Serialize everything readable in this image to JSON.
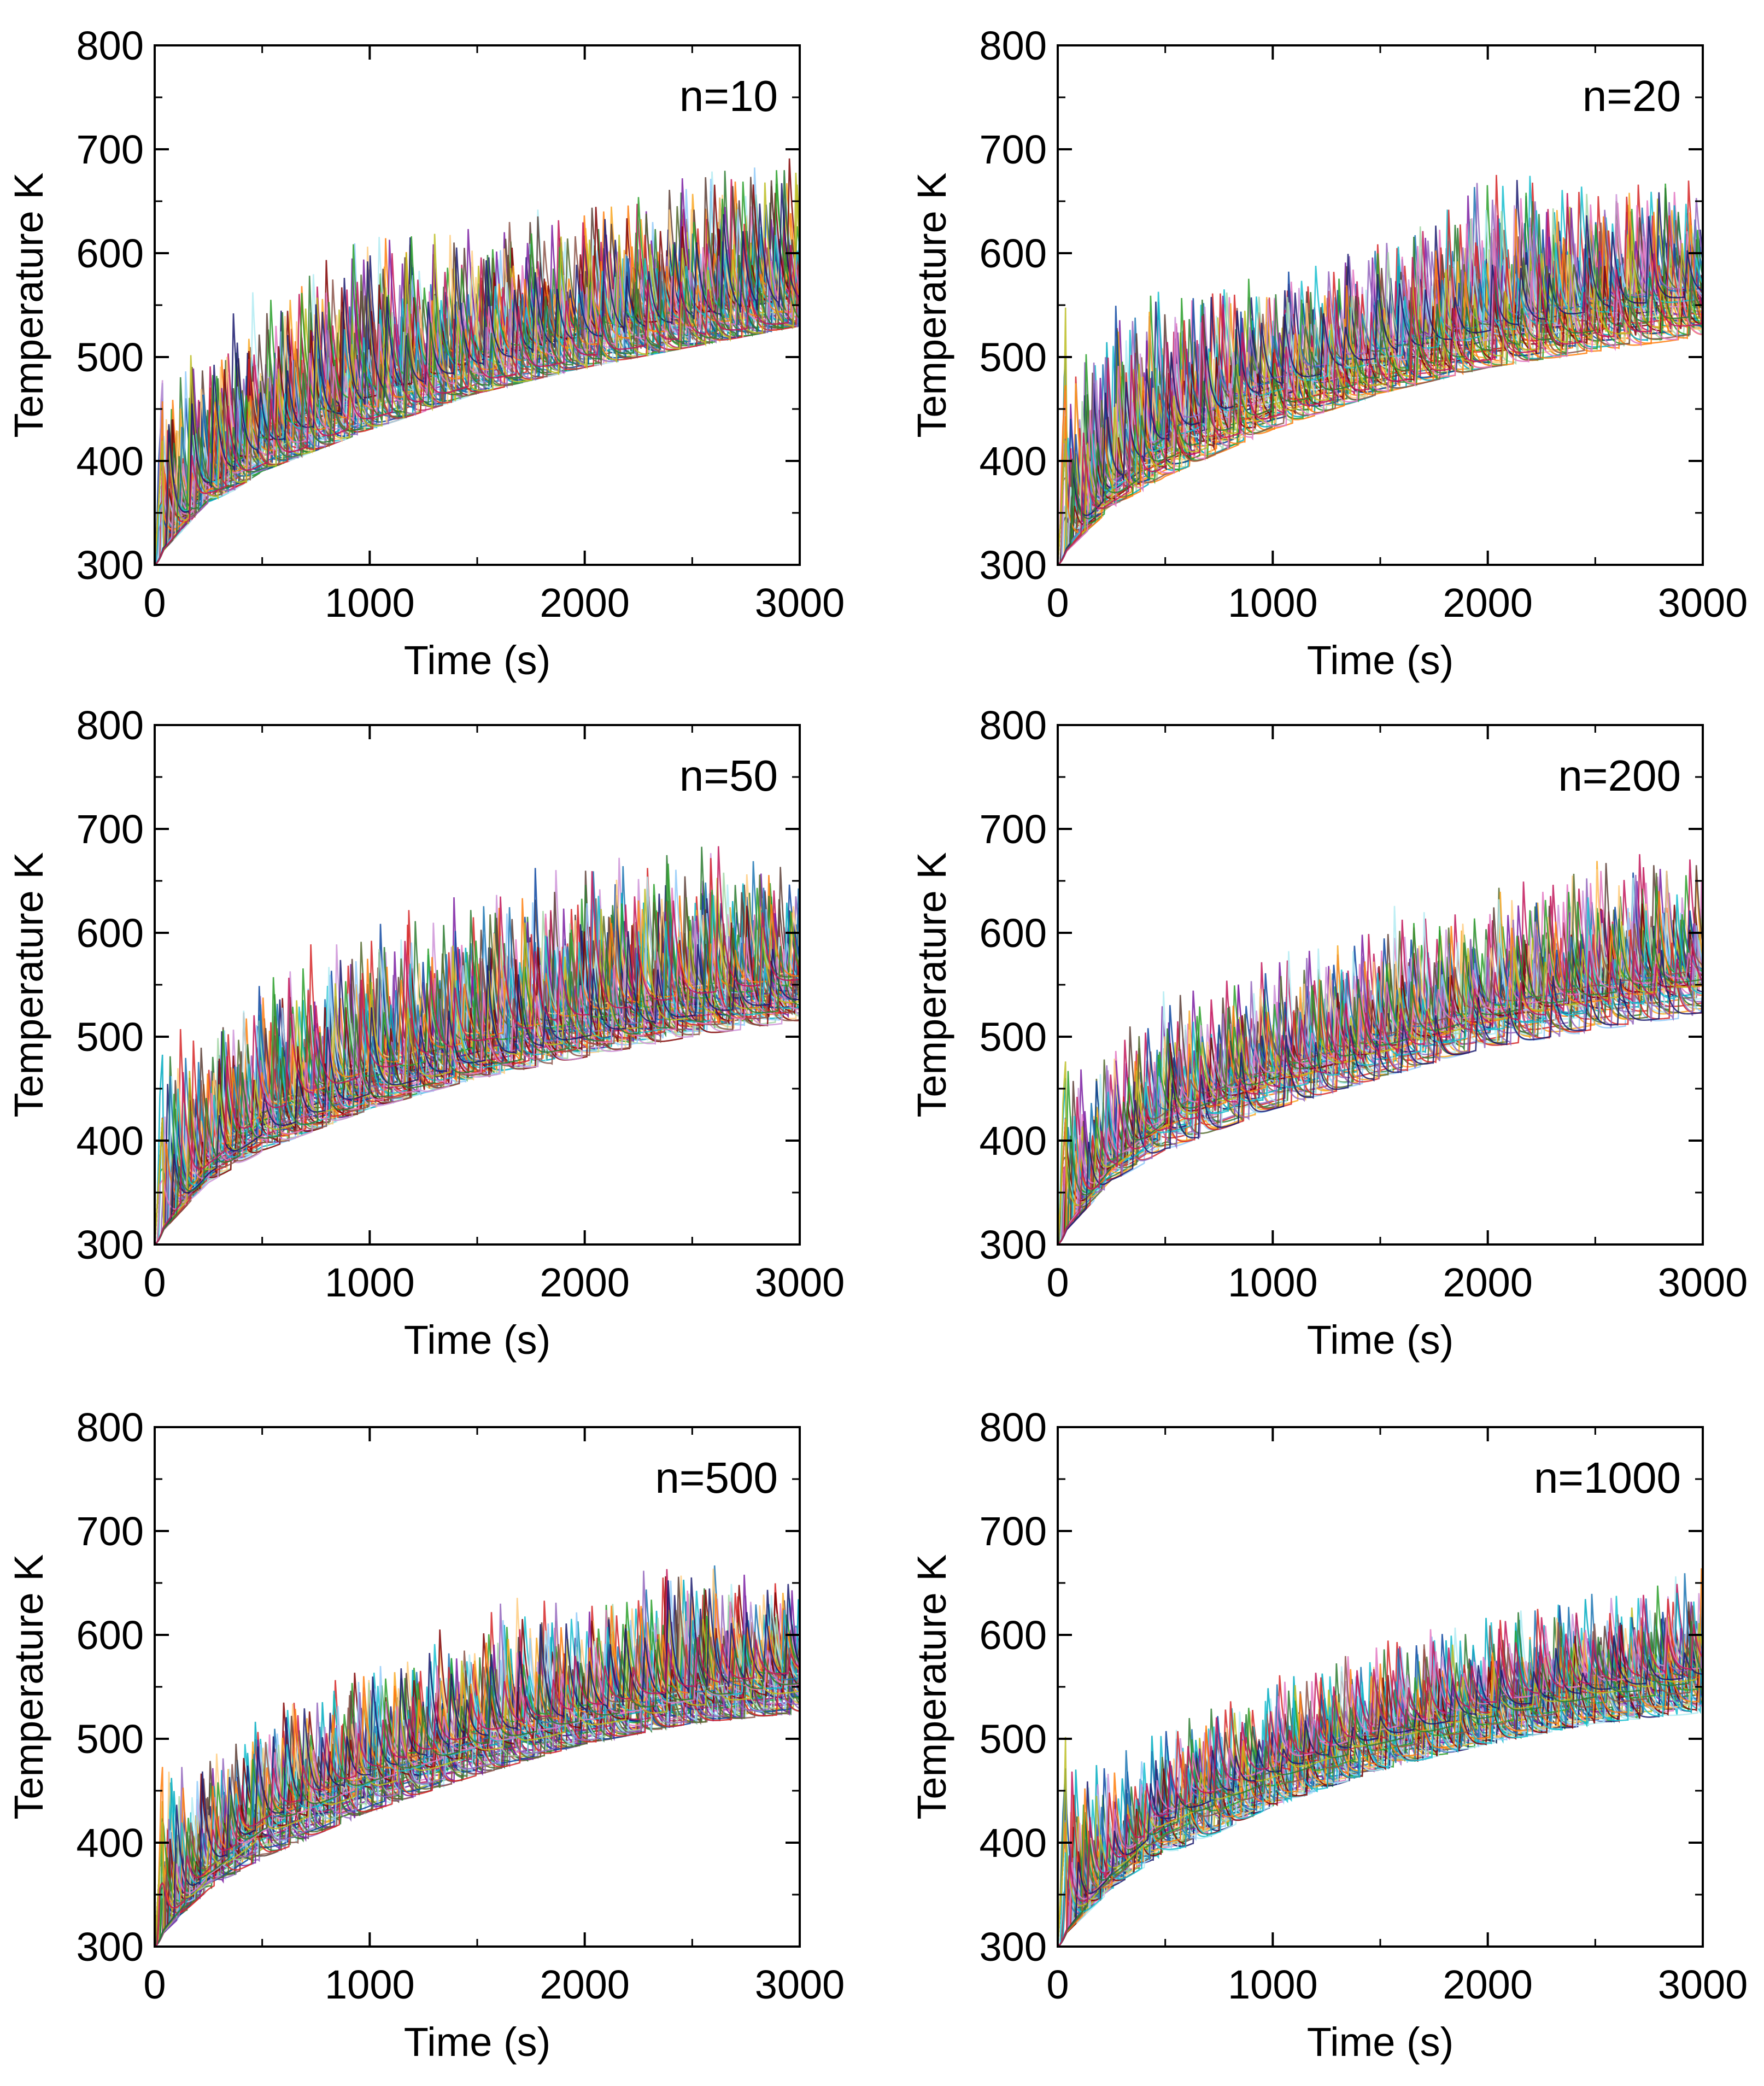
{
  "figure": {
    "description_free": true
  },
  "chart_data": [
    {
      "type": "line",
      "title": "n=10",
      "xlabel": "Time (s)",
      "ylabel": "Temperature K",
      "xlim": [
        0,
        3000
      ],
      "ylim": [
        300,
        800
      ],
      "xticks": [
        "0",
        "1000",
        "2000",
        "3000"
      ],
      "yticks": [
        "300",
        "400",
        "500",
        "600",
        "700",
        "800"
      ],
      "series_count": 60,
      "envelope": {
        "x": [
          0,
          250,
          500,
          1000,
          1500,
          2000,
          2500,
          3000
        ],
        "baseline": [
          300,
          355,
          390,
          430,
          465,
          490,
          510,
          530
        ],
        "mean": [
          305,
          370,
          405,
          450,
          485,
          510,
          530,
          545
        ],
        "peak_max": [
          470,
          535,
          560,
          630,
          625,
          650,
          675,
          700
        ]
      }
    },
    {
      "type": "line",
      "title": "n=20",
      "xlabel": "Time (s)",
      "ylabel": "Temperature K",
      "xlim": [
        0,
        3000
      ],
      "ylim": [
        300,
        800
      ],
      "xticks": [
        "0",
        "1000",
        "2000",
        "3000"
      ],
      "yticks": [
        "300",
        "400",
        "500",
        "600",
        "700",
        "800"
      ],
      "series_count": 60,
      "envelope": {
        "x": [
          0,
          250,
          500,
          1000,
          1500,
          2000,
          2500,
          3000
        ],
        "baseline": [
          300,
          345,
          385,
          430,
          465,
          490,
          505,
          515
        ],
        "mean": [
          305,
          365,
          405,
          455,
          485,
          510,
          530,
          545
        ],
        "peak_max": [
          470,
          550,
          560,
          580,
          610,
          680,
          670,
          665
        ]
      }
    },
    {
      "type": "line",
      "title": "n=50",
      "xlabel": "Time (s)",
      "ylabel": "Temperature K",
      "xlim": [
        0,
        3000
      ],
      "ylim": [
        300,
        800
      ],
      "xticks": [
        "0",
        "1000",
        "2000",
        "3000"
      ],
      "yticks": [
        "300",
        "400",
        "500",
        "600",
        "700",
        "800"
      ],
      "series_count": 60,
      "envelope": {
        "x": [
          0,
          250,
          500,
          1000,
          1500,
          2000,
          2500,
          3000
        ],
        "baseline": [
          300,
          350,
          390,
          430,
          460,
          480,
          490,
          500
        ],
        "mean": [
          305,
          370,
          410,
          450,
          480,
          505,
          525,
          540
        ],
        "peak_max": [
          480,
          530,
          560,
          610,
          645,
          675,
          690,
          670
        ]
      }
    },
    {
      "type": "line",
      "title": "n=200",
      "xlabel": "Time (s)",
      "ylabel": "Temperature K",
      "xlim": [
        0,
        3000
      ],
      "ylim": [
        300,
        800
      ],
      "xticks": [
        "0",
        "1000",
        "2000",
        "3000"
      ],
      "yticks": [
        "300",
        "400",
        "500",
        "600",
        "700",
        "800"
      ],
      "series_count": 60,
      "envelope": {
        "x": [
          0,
          250,
          500,
          1000,
          1500,
          2000,
          2500,
          3000
        ],
        "baseline": [
          300,
          350,
          390,
          430,
          460,
          490,
          505,
          500
        ],
        "mean": [
          305,
          370,
          410,
          450,
          480,
          510,
          530,
          545
        ],
        "peak_max": [
          470,
          500,
          545,
          575,
          620,
          640,
          680,
          670
        ]
      }
    },
    {
      "type": "line",
      "title": "n=500",
      "xlabel": "Time (s)",
      "ylabel": "Temperature K",
      "xlim": [
        0,
        3000
      ],
      "ylim": [
        300,
        800
      ],
      "xticks": [
        "0",
        "1000",
        "2000",
        "3000"
      ],
      "yticks": [
        "300",
        "400",
        "500",
        "600",
        "700",
        "800"
      ],
      "series_count": 60,
      "envelope": {
        "x": [
          0,
          250,
          500,
          1000,
          1500,
          2000,
          2500,
          3000
        ],
        "baseline": [
          300,
          345,
          385,
          430,
          465,
          495,
          515,
          525
        ],
        "mean": [
          305,
          365,
          405,
          450,
          485,
          510,
          530,
          545
        ],
        "peak_max": [
          475,
          500,
          535,
          580,
          625,
          645,
          690,
          665
        ]
      }
    },
    {
      "type": "line",
      "title": "n=1000",
      "xlabel": "Time (s)",
      "ylabel": "Temperature K",
      "xlim": [
        0,
        3000
      ],
      "ylim": [
        300,
        800
      ],
      "xticks": [
        "0",
        "1000",
        "2000",
        "3000"
      ],
      "yticks": [
        "300",
        "400",
        "500",
        "600",
        "700",
        "800"
      ],
      "series_count": 60,
      "envelope": {
        "x": [
          0,
          250,
          500,
          1000,
          1500,
          2000,
          2500,
          3000
        ],
        "baseline": [
          300,
          340,
          385,
          435,
          470,
          495,
          515,
          525
        ],
        "mean": [
          305,
          365,
          410,
          455,
          490,
          515,
          535,
          550
        ],
        "peak_max": [
          495,
          480,
          510,
          560,
          595,
          620,
          645,
          665
        ]
      }
    }
  ],
  "palette": [
    "#1f77b4",
    "#d62728",
    "#2ca02c",
    "#9467bd",
    "#ff7f0e",
    "#17becf",
    "#8c564b",
    "#e377c2",
    "#bcbd22",
    "#1a1a6e",
    "#2e7d32",
    "#c2185b",
    "#00acc1",
    "#7b1fa2",
    "#f9a825",
    "#5d4037",
    "#0d47a1",
    "#b2ebf2",
    "#ffcc80",
    "#a5d6a7",
    "#ce93d8",
    "#90caf9",
    "#556b2f",
    "#800000"
  ]
}
